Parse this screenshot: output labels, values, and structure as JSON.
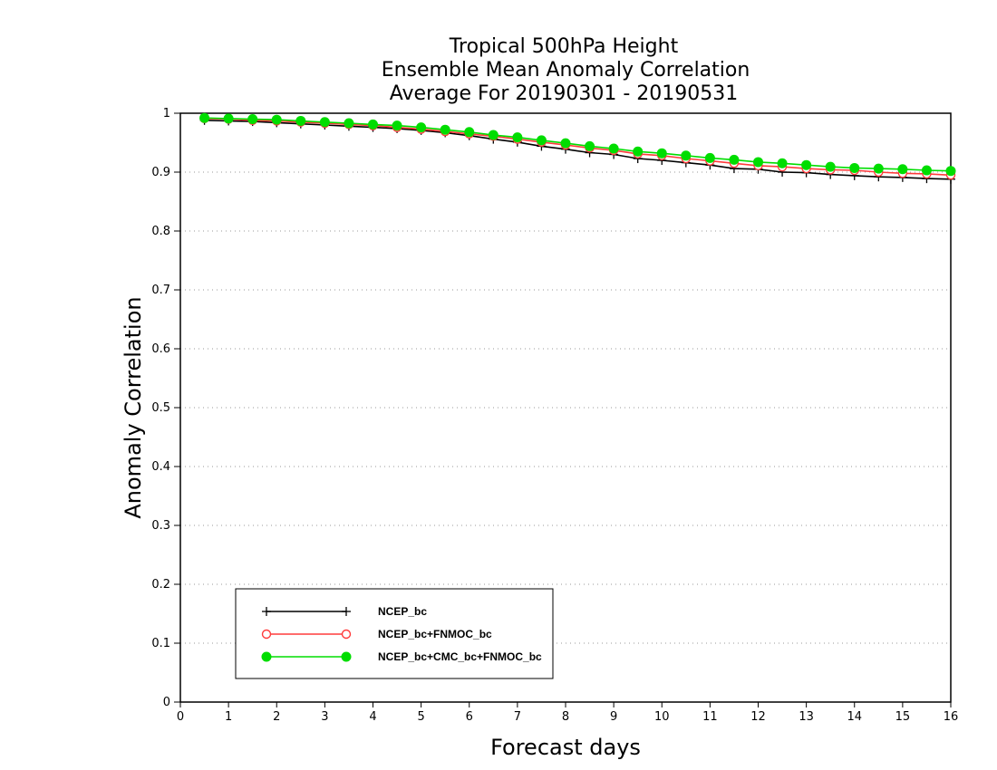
{
  "chart_data": {
    "type": "line",
    "title_lines": [
      "Tropical 500hPa Height",
      "Ensemble Mean Anomaly Correlation",
      "Average For 20190301 - 20190531"
    ],
    "xlabel": "Forecast days",
    "ylabel": "Anomaly Correlation",
    "xlim": [
      0,
      16
    ],
    "ylim": [
      0,
      1
    ],
    "x_ticks": [
      0,
      1,
      2,
      3,
      4,
      5,
      6,
      7,
      8,
      9,
      10,
      11,
      12,
      13,
      14,
      15,
      16
    ],
    "y_ticks": [
      0,
      0.1,
      0.2,
      0.3,
      0.4,
      0.5,
      0.6,
      0.7,
      0.8,
      0.9,
      1
    ],
    "y_tick_labels": [
      "0",
      "0.1",
      "0.2",
      "0.3",
      "0.4",
      "0.5",
      "0.6",
      "0.7",
      "0.8",
      "0.9",
      "1"
    ],
    "grid": "horizontal dotted",
    "legend_position": "bottom-left",
    "x": [
      0.5,
      1.0,
      1.5,
      2.0,
      2.5,
      3.0,
      3.5,
      4.0,
      4.5,
      5.0,
      5.5,
      6.0,
      6.5,
      7.0,
      7.5,
      8.0,
      8.5,
      9.0,
      9.5,
      10.0,
      10.5,
      11.0,
      11.5,
      12.0,
      12.5,
      13.0,
      13.5,
      14.0,
      14.5,
      15.0,
      15.5,
      16.0
    ],
    "series": [
      {
        "name": "NCEP_bc",
        "color": "#000000",
        "marker": "plus",
        "values": [
          0.988,
          0.987,
          0.986,
          0.984,
          0.982,
          0.98,
          0.978,
          0.976,
          0.974,
          0.971,
          0.967,
          0.962,
          0.956,
          0.951,
          0.944,
          0.939,
          0.933,
          0.93,
          0.923,
          0.92,
          0.916,
          0.912,
          0.906,
          0.905,
          0.9,
          0.899,
          0.896,
          0.894,
          0.892,
          0.891,
          0.889,
          0.888
        ]
      },
      {
        "name": "NCEP_bc+FNMOC_bc",
        "color": "#ff3b3b",
        "marker": "open-circle",
        "values": [
          0.991,
          0.99,
          0.988,
          0.987,
          0.985,
          0.983,
          0.981,
          0.979,
          0.976,
          0.973,
          0.969,
          0.965,
          0.961,
          0.956,
          0.951,
          0.946,
          0.941,
          0.937,
          0.931,
          0.928,
          0.923,
          0.919,
          0.915,
          0.911,
          0.909,
          0.906,
          0.904,
          0.903,
          0.9,
          0.898,
          0.897,
          0.895
        ]
      },
      {
        "name": "NCEP_bc+CMC_bc+FNMOC_bc",
        "color": "#00dd00",
        "marker": "filled-circle",
        "values": [
          0.992,
          0.991,
          0.99,
          0.989,
          0.987,
          0.985,
          0.983,
          0.981,
          0.979,
          0.976,
          0.972,
          0.968,
          0.963,
          0.959,
          0.954,
          0.949,
          0.944,
          0.94,
          0.935,
          0.932,
          0.928,
          0.924,
          0.921,
          0.917,
          0.915,
          0.912,
          0.909,
          0.907,
          0.906,
          0.905,
          0.903,
          0.902
        ]
      }
    ]
  }
}
